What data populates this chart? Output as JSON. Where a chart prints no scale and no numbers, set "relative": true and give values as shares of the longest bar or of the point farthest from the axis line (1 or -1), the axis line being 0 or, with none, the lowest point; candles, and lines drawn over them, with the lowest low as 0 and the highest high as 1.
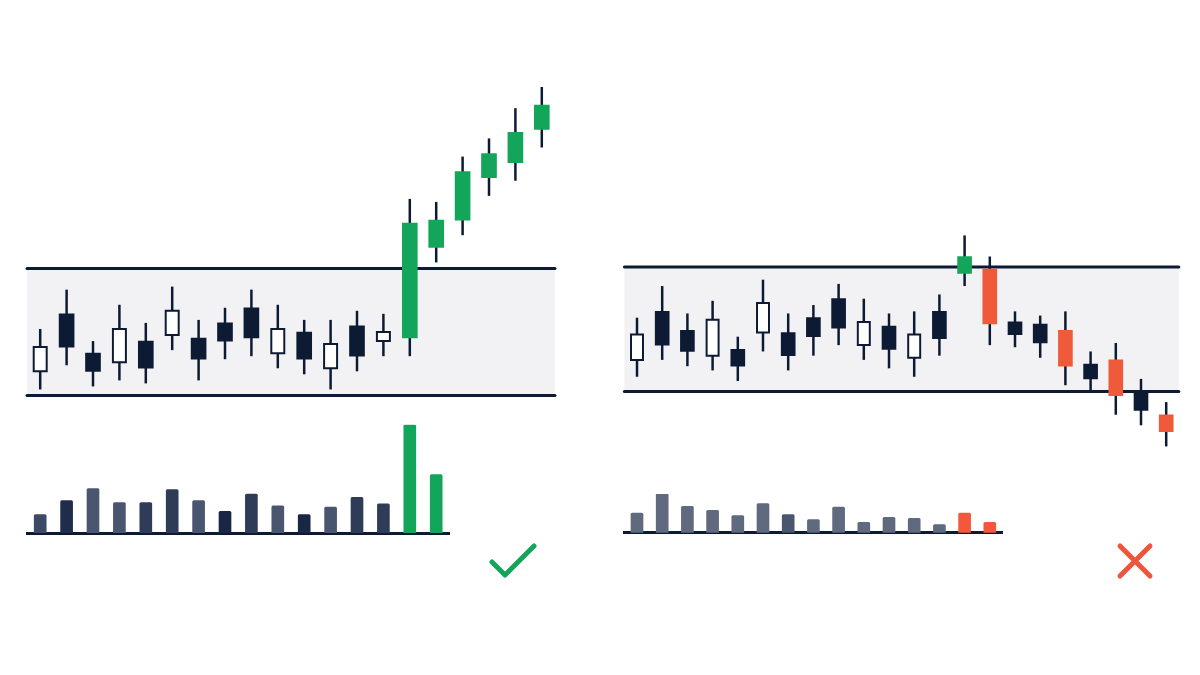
{
  "chart_data": [
    {
      "type": "candlestick",
      "relative": true,
      "categories": [
        null,
        null,
        null,
        null,
        null,
        null,
        null,
        null,
        null,
        null,
        null,
        null,
        null,
        null,
        null,
        null,
        null,
        null,
        null,
        null
      ],
      "series": [
        {
          "color": "#ffffff",
          "ohlc": [
            [
              0.06,
              0.2,
              0,
              0.14
            ],
            null,
            null,
            [
              0.09,
              0.28,
              0.03,
              0.2
            ],
            null,
            [
              0.18,
              0.34,
              0.13,
              0.26
            ],
            null,
            null,
            null,
            [
              0.12,
              0.28,
              0.07,
              0.2
            ],
            null,
            [
              0.07,
              0.23,
              0,
              0.15
            ],
            null,
            [
              0.16,
              0.25,
              0.11,
              0.19
            ],
            null,
            null,
            null,
            null,
            null,
            null
          ]
        },
        {
          "color": "#0d1a33",
          "ohlc": [
            null,
            [
              0.25,
              0.33,
              0.08,
              0.14
            ],
            [
              0.12,
              0.16,
              0.01,
              0.06
            ],
            null,
            [
              0.16,
              0.22,
              0.02,
              0.07
            ],
            null,
            [
              0.17,
              0.23,
              0.03,
              0.1
            ],
            [
              0.22,
              0.27,
              0.1,
              0.16
            ],
            [
              0.27,
              0.33,
              0.11,
              0.17
            ],
            null,
            [
              0.19,
              0.23,
              0.05,
              0.1
            ],
            null,
            [
              0.21,
              0.26,
              0.06,
              0.11
            ],
            null,
            null,
            null,
            null,
            null,
            null,
            null
          ]
        },
        {
          "color": "#13a65b",
          "ohlc": [
            null,
            null,
            null,
            null,
            null,
            null,
            null,
            null,
            null,
            null,
            null,
            null,
            null,
            null,
            [
              0.17,
              0.63,
              0.11,
              0.55
            ],
            [
              0.47,
              0.62,
              0.42,
              0.56
            ],
            [
              0.56,
              0.77,
              0.51,
              0.72
            ],
            [
              0.7,
              0.83,
              0.64,
              0.78
            ],
            [
              0.75,
              0.93,
              0.69,
              0.85
            ],
            [
              0.86,
              1,
              0.8,
              0.94
            ]
          ]
        }
      ],
      "bands": [
        {
          "axis": "y",
          "from": -0.02,
          "to": 0.4,
          "color": "#f2f2f4"
        }
      ],
      "ref_lines": [
        {
          "axis": "y",
          "value": 0.4,
          "color": "#0d1a33"
        },
        {
          "axis": "y",
          "value": -0.02,
          "color": "#0d1a33"
        }
      ]
    },
    {
      "type": "bar",
      "relative": true,
      "categories": [
        null,
        null,
        null,
        null,
        null,
        null,
        null,
        null,
        null,
        null,
        null,
        null,
        null,
        null,
        null,
        null
      ],
      "values": [
        0.17,
        0.3,
        0.41,
        0.28,
        0.28,
        0.4,
        0.3,
        0.2,
        0.36,
        0.25,
        0.17,
        0.24,
        0.33,
        0.27,
        1,
        0.54
      ],
      "colors": [
        "#3d4a66",
        "#1f2d4a",
        "#4a5670",
        "#4a5670",
        "#2f3c58",
        "#2f3c58",
        "#4a5670",
        "#1a2744",
        "#2f3c58",
        "#4a5670",
        "#1a2744",
        "#4a5670",
        "#2f3c58",
        "#2f3c58",
        "#13a65b",
        "#13a65b"
      ]
    },
    {
      "type": "candlestick",
      "relative": true,
      "categories": [
        null,
        null,
        null,
        null,
        null,
        null,
        null,
        null,
        null,
        null,
        null,
        null,
        null,
        null,
        null,
        null,
        null,
        null,
        null,
        null,
        null,
        null
      ],
      "series": [
        {
          "color": "#ffffff",
          "ohlc": [
            [
              0.41,
              0.61,
              0.33,
              0.53
            ],
            null,
            null,
            [
              0.43,
              0.69,
              0.36,
              0.6
            ],
            null,
            [
              0.54,
              0.79,
              0.45,
              0.68
            ],
            null,
            null,
            null,
            [
              0.48,
              0.7,
              0.41,
              0.59
            ],
            null,
            [
              0.42,
              0.64,
              0.33,
              0.53
            ],
            null,
            null,
            null,
            null,
            null,
            null,
            null,
            null,
            null,
            null
          ]
        },
        {
          "color": "#0d1a33",
          "ohlc": [
            null,
            [
              0.64,
              0.76,
              0.41,
              0.48
            ],
            [
              0.55,
              0.63,
              0.38,
              0.45
            ],
            null,
            [
              0.46,
              0.52,
              0.31,
              0.38
            ],
            null,
            [
              0.54,
              0.63,
              0.36,
              0.43
            ],
            [
              0.61,
              0.67,
              0.43,
              0.52
            ],
            [
              0.7,
              0.77,
              0.48,
              0.56
            ],
            null,
            [
              0.57,
              0.63,
              0.37,
              0.46
            ],
            null,
            [
              0.64,
              0.72,
              0.43,
              0.51
            ],
            null,
            null,
            [
              0.59,
              0.64,
              0.47,
              0.53
            ],
            [
              0.58,
              0.62,
              0.42,
              0.49
            ],
            null,
            [
              0.39,
              0.45,
              0.26,
              0.32
            ],
            null,
            [
              0.26,
              0.32,
              0.1,
              0.17
            ],
            null
          ]
        },
        {
          "color": "#13a65b",
          "ohlc": [
            null,
            null,
            null,
            null,
            null,
            null,
            null,
            null,
            null,
            null,
            null,
            null,
            null,
            [
              0.82,
              1,
              0.76,
              0.9
            ],
            null,
            null,
            null,
            null,
            null,
            null,
            null,
            null
          ]
        },
        {
          "color": "#ee5a3a",
          "ohlc": [
            null,
            null,
            null,
            null,
            null,
            null,
            null,
            null,
            null,
            null,
            null,
            null,
            null,
            null,
            [
              0.84,
              0.9,
              0.48,
              0.58
            ],
            null,
            null,
            [
              0.55,
              0.64,
              0.29,
              0.38
            ],
            null,
            [
              0.41,
              0.49,
              0.15,
              0.24
            ],
            null,
            [
              0.15,
              0.21,
              0,
              0.07
            ]
          ]
        }
      ],
      "bands": [
        {
          "axis": "y",
          "from": 0.26,
          "to": 0.85,
          "color": "#f2f2f4"
        }
      ],
      "ref_lines": [
        {
          "axis": "y",
          "value": 0.85,
          "color": "#0d1a33"
        },
        {
          "axis": "y",
          "value": 0.26,
          "color": "#0d1a33"
        }
      ]
    },
    {
      "type": "bar",
      "relative": true,
      "categories": [
        null,
        null,
        null,
        null,
        null,
        null,
        null,
        null,
        null,
        null,
        null,
        null,
        null,
        null,
        null
      ],
      "values": [
        0.51,
        1,
        0.68,
        0.58,
        0.44,
        0.75,
        0.47,
        0.34,
        0.66,
        0.27,
        0.4,
        0.37,
        0.21,
        0.51,
        0.27
      ],
      "colors": [
        "#5f6a7e",
        "#5f6a7e",
        "#5f6a7e",
        "#5f6a7e",
        "#5f6a7e",
        "#5f6a7e",
        "#4a5670",
        "#5f6a7e",
        "#5f6a7e",
        "#5f6a7e",
        "#5f6a7e",
        "#5f6a7e",
        "#5f6a7e",
        "#f4583c",
        "#f4583c"
      ]
    }
  ]
}
